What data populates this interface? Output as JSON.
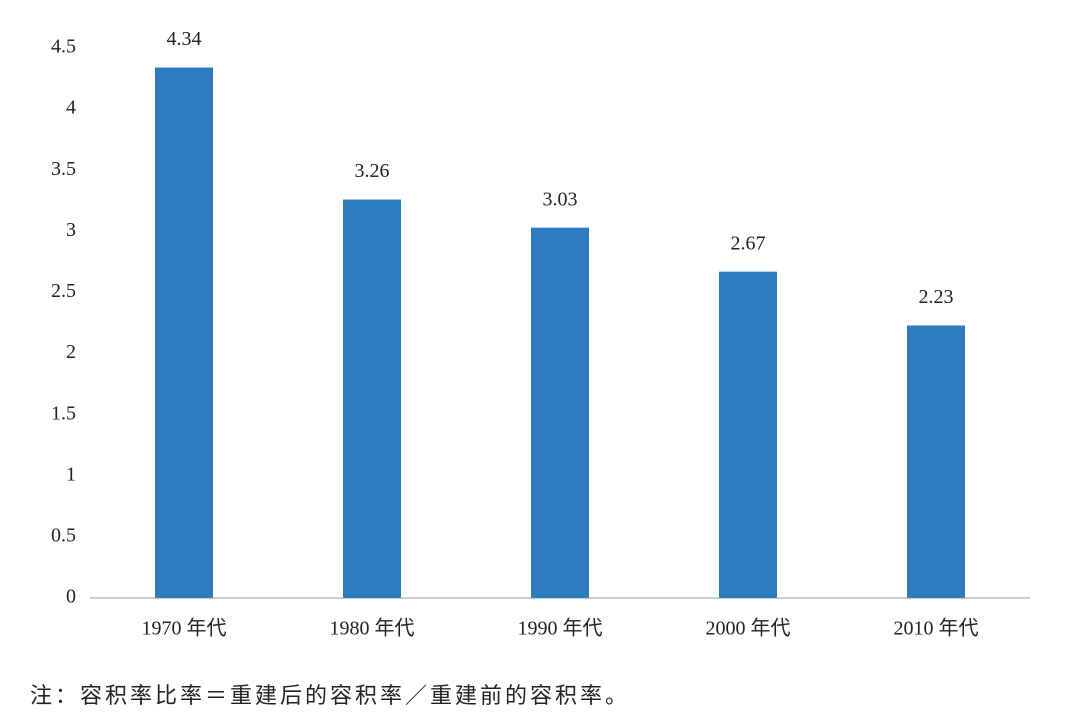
{
  "chart_data": {
    "type": "bar",
    "categories": [
      "1970 年代",
      "1980 年代",
      "1990 年代",
      "2000 年代",
      "2010 年代"
    ],
    "values": [
      4.34,
      3.26,
      3.03,
      2.67,
      2.23
    ],
    "color": "#2e7bbf",
    "ylim": [
      0,
      4.5
    ],
    "yticks": [
      0,
      0.5,
      1,
      1.5,
      2,
      2.5,
      3,
      3.5,
      4,
      4.5
    ],
    "grid": false,
    "note": "注：容积率比率＝重建后的容积率／重建前的容积率。"
  }
}
